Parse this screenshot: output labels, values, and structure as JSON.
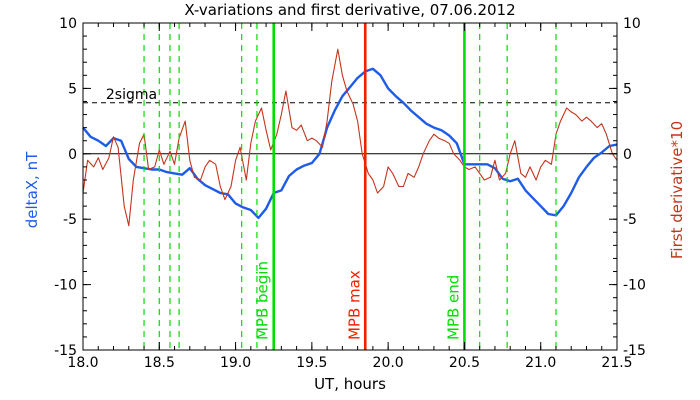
{
  "chart_data": {
    "type": "line",
    "title": "X-variations and first derivative, 07.06.2012",
    "xlabel": "UT, hours",
    "ylabel_left": "deltaX, nT",
    "ylabel_right": "First derivative*10",
    "xlim": [
      18.0,
      21.5
    ],
    "ylim_left": [
      -15,
      10
    ],
    "ylim_right": [
      -15,
      10
    ],
    "x_ticks": [
      "18.0",
      "18.5",
      "19.0",
      "19.5",
      "20.0",
      "20.5",
      "21.0",
      "21.5"
    ],
    "y_ticks_left": [
      "10",
      "5",
      "0",
      "-5",
      "-10",
      "-15"
    ],
    "y_ticks_right": [
      "10",
      "5",
      "0",
      "-5",
      "-10",
      "-15"
    ],
    "threshold": {
      "label": "2sigma",
      "value": 3.9
    },
    "zero_line": 0,
    "vertical_markers": [
      {
        "x": 19.25,
        "label": "MPB begin",
        "color": "#00dd00"
      },
      {
        "x": 19.85,
        "label": "MPB max",
        "color": "#ee2200"
      },
      {
        "x": 20.5,
        "label": "MPB end",
        "color": "#00dd00"
      }
    ],
    "dashed_markers": {
      "color": "#00dd00",
      "x": [
        18.4,
        18.5,
        18.57,
        18.63,
        19.04,
        19.14,
        20.6,
        20.78,
        21.1
      ]
    },
    "series": [
      {
        "name": "deltaX, nT",
        "color": "#1e5ce8",
        "x": [
          18.0,
          18.05,
          18.1,
          18.15,
          18.2,
          18.25,
          18.3,
          18.35,
          18.4,
          18.45,
          18.5,
          18.55,
          18.6,
          18.65,
          18.7,
          18.75,
          18.8,
          18.85,
          18.9,
          18.95,
          19.0,
          19.05,
          19.1,
          19.15,
          19.2,
          19.25,
          19.3,
          19.35,
          19.4,
          19.45,
          19.5,
          19.55,
          19.6,
          19.65,
          19.7,
          19.75,
          19.8,
          19.85,
          19.9,
          19.95,
          20.0,
          20.05,
          20.1,
          20.15,
          20.2,
          20.25,
          20.3,
          20.35,
          20.4,
          20.45,
          20.5,
          20.55,
          20.6,
          20.65,
          20.7,
          20.75,
          20.8,
          20.85,
          20.9,
          20.95,
          21.0,
          21.05,
          21.1,
          21.15,
          21.2,
          21.25,
          21.3,
          21.35,
          21.4,
          21.45,
          21.5
        ],
        "y": [
          2.0,
          1.3,
          1.0,
          0.6,
          1.2,
          1.0,
          -0.4,
          -1.0,
          -1.1,
          -1.2,
          -1.2,
          -1.4,
          -1.5,
          -1.6,
          -1.1,
          -1.9,
          -2.4,
          -2.7,
          -3.0,
          -3.1,
          -3.8,
          -4.1,
          -4.3,
          -4.9,
          -4.2,
          -3.0,
          -2.8,
          -1.7,
          -1.2,
          -0.9,
          -0.7,
          0.0,
          2.0,
          3.3,
          4.4,
          5.1,
          5.8,
          6.3,
          6.5,
          6.0,
          5.0,
          4.4,
          3.9,
          3.3,
          2.8,
          2.3,
          2.0,
          1.8,
          1.4,
          0.8,
          -0.8,
          -0.8,
          -0.8,
          -0.8,
          -1.1,
          -1.9,
          -2.1,
          -1.9,
          -2.8,
          -3.4,
          -4.0,
          -4.6,
          -4.7,
          -4.0,
          -3.0,
          -1.8,
          -1.0,
          -0.3,
          0.1,
          0.6,
          0.7
        ]
      },
      {
        "name": "First derivative*10",
        "color": "#c4341c",
        "x": [
          18.0,
          18.03,
          18.07,
          18.1,
          18.13,
          18.17,
          18.2,
          18.23,
          18.27,
          18.3,
          18.33,
          18.37,
          18.4,
          18.43,
          18.47,
          18.5,
          18.53,
          18.57,
          18.6,
          18.63,
          18.67,
          18.7,
          18.73,
          18.77,
          18.8,
          18.83,
          18.87,
          18.9,
          18.93,
          18.97,
          19.0,
          19.03,
          19.07,
          19.1,
          19.13,
          19.17,
          19.2,
          19.23,
          19.27,
          19.3,
          19.33,
          19.37,
          19.4,
          19.43,
          19.47,
          19.5,
          19.53,
          19.57,
          19.6,
          19.63,
          19.67,
          19.7,
          19.73,
          19.77,
          19.8,
          19.83,
          19.87,
          19.9,
          19.93,
          19.97,
          20.0,
          20.03,
          20.07,
          20.1,
          20.13,
          20.17,
          20.2,
          20.23,
          20.27,
          20.3,
          20.33,
          20.37,
          20.4,
          20.43,
          20.47,
          20.5,
          20.53,
          20.57,
          20.6,
          20.63,
          20.67,
          20.7,
          20.73,
          20.77,
          20.8,
          20.83,
          20.87,
          20.9,
          20.93,
          20.97,
          21.0,
          21.03,
          21.07,
          21.1,
          21.13,
          21.17,
          21.2,
          21.23,
          21.27,
          21.3,
          21.33,
          21.37,
          21.4,
          21.43,
          21.47,
          21.5
        ],
        "y": [
          -3.0,
          -0.5,
          -1.0,
          -0.3,
          -1.2,
          -0.3,
          1.3,
          0.5,
          -4.0,
          -5.5,
          -2.0,
          0.8,
          1.5,
          -1.2,
          -1.0,
          0.3,
          -0.8,
          0.2,
          -0.8,
          1.2,
          2.5,
          -0.5,
          -1.8,
          -2.0,
          -1.0,
          -0.5,
          -0.8,
          -2.5,
          -3.5,
          -2.5,
          -0.5,
          0.5,
          -2.0,
          0.8,
          2.5,
          3.5,
          1.8,
          0.3,
          1.5,
          3.0,
          4.8,
          2.0,
          1.8,
          2.2,
          1.0,
          1.2,
          1.0,
          0.5,
          2.5,
          5.5,
          8.0,
          6.0,
          4.8,
          3.8,
          2.5,
          0.0,
          -1.5,
          -2.0,
          -3.0,
          -2.5,
          -1.0,
          -1.5,
          -2.5,
          -2.5,
          -1.5,
          -1.8,
          -1.0,
          0.0,
          1.0,
          1.5,
          1.2,
          1.0,
          0.8,
          0.0,
          -0.5,
          -1.0,
          -1.2,
          -1.0,
          -1.5,
          -2.0,
          -1.8,
          -0.5,
          -2.0,
          -1.5,
          0.0,
          1.0,
          -1.5,
          -1.8,
          -1.0,
          -2.0,
          -1.0,
          -0.5,
          -0.8,
          1.5,
          2.5,
          3.5,
          3.2,
          3.0,
          2.5,
          2.8,
          2.5,
          2.0,
          2.3,
          1.5,
          0.0,
          -0.5
        ]
      }
    ]
  }
}
